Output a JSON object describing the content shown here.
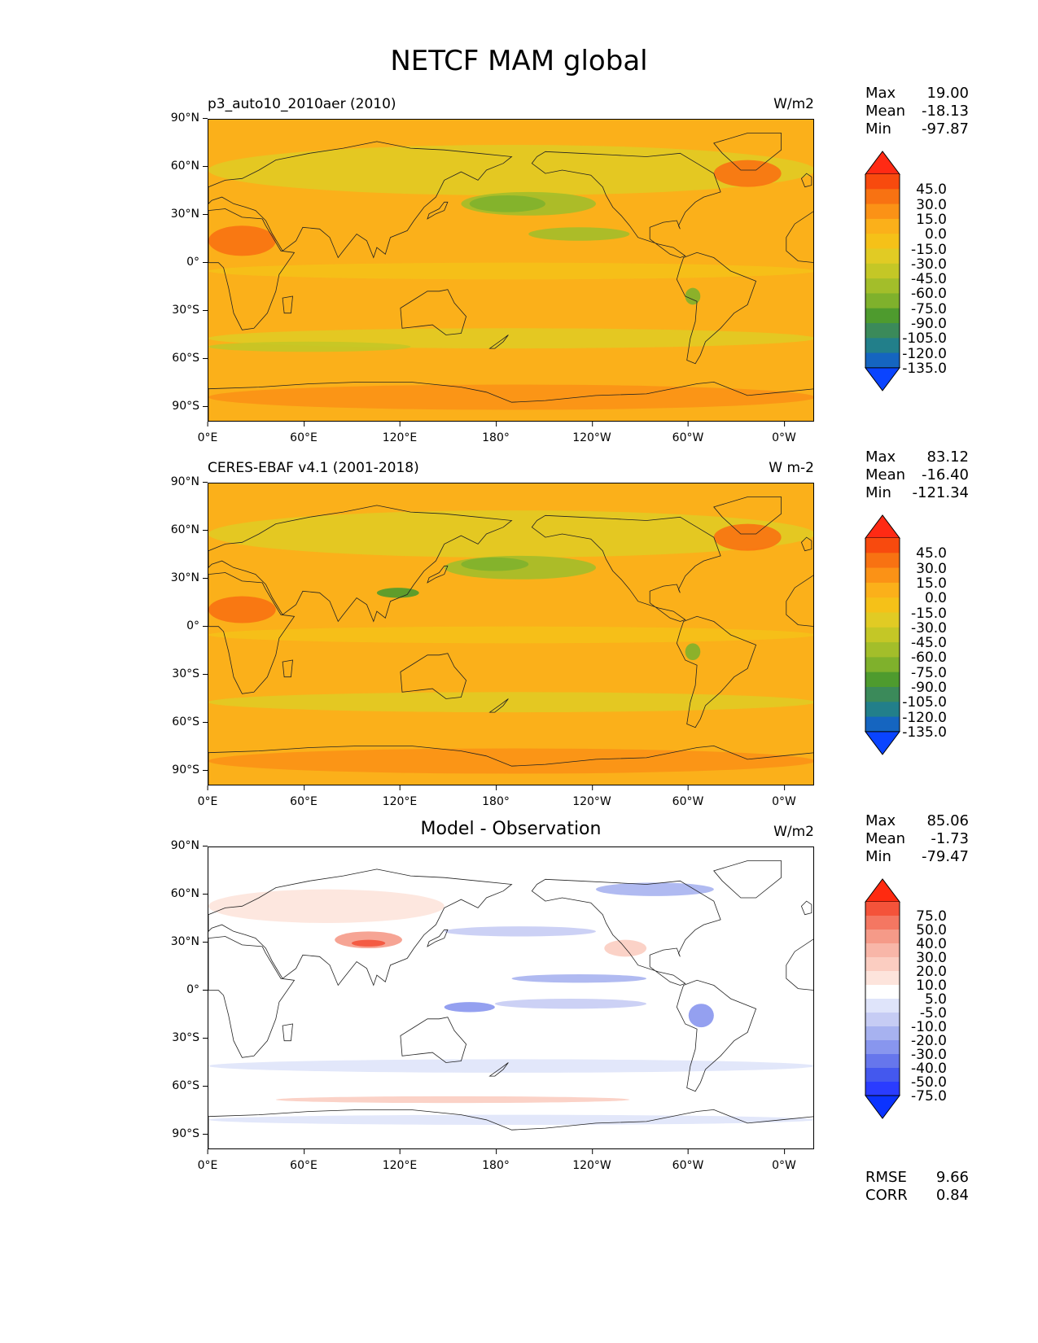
{
  "figure": {
    "title": "NETCF MAM global"
  },
  "axes": {
    "lat_ticks": [
      "90°N",
      "60°N",
      "30°N",
      "0°",
      "30°S",
      "60°S",
      "90°S"
    ],
    "lon_ticks": [
      "0°E",
      "60°E",
      "120°E",
      "180°",
      "120°W",
      "60°W",
      "0°W"
    ]
  },
  "panels": [
    {
      "title_left": "p3_auto10_2010aer (2010)",
      "title_center": "",
      "units": "W/m2",
      "stats": {
        "max_label": "Max",
        "max": "19.00",
        "mean_label": "Mean",
        "mean": "-18.13",
        "min_label": "Min",
        "min": "-97.87"
      },
      "colorbar": {
        "labels": [
          "45.0",
          "30.0",
          "15.0",
          "0.0",
          "-15.0",
          "-30.0",
          "-45.0",
          "-60.0",
          "-75.0",
          "-90.0",
          "-105.0",
          "-120.0",
          "-135.0"
        ],
        "colors": [
          "#ff2a14",
          "#f84a0e",
          "#f87212",
          "#fb9216",
          "#fbb01a",
          "#f5c118",
          "#e1cb24",
          "#c4c726",
          "#a3be2a",
          "#7fb12c",
          "#4e9b2e",
          "#3b8a5a",
          "#227f8a",
          "#1565c0",
          "#0a44ff"
        ]
      }
    },
    {
      "title_left": "CERES-EBAF v4.1 (2001-2018)",
      "title_center": "",
      "units": "W m-2",
      "stats": {
        "max_label": "Max",
        "max": "83.12",
        "mean_label": "Mean",
        "mean": "-16.40",
        "min_label": "Min",
        "min": "-121.34"
      },
      "colorbar": {
        "labels": [
          "45.0",
          "30.0",
          "15.0",
          "0.0",
          "-15.0",
          "-30.0",
          "-45.0",
          "-60.0",
          "-75.0",
          "-90.0",
          "-105.0",
          "-120.0",
          "-135.0"
        ],
        "colors": [
          "#ff2a14",
          "#f84a0e",
          "#f87212",
          "#fb9216",
          "#fbb01a",
          "#f5c118",
          "#e1cb24",
          "#c4c726",
          "#a3be2a",
          "#7fb12c",
          "#4e9b2e",
          "#3b8a5a",
          "#227f8a",
          "#1565c0",
          "#0a44ff"
        ]
      }
    },
    {
      "title_left": "",
      "title_center": "Model - Observation",
      "units": "W/m2",
      "stats": {
        "max_label": "Max",
        "max": "85.06",
        "mean_label": "Mean",
        "mean": "-1.73",
        "min_label": "Min",
        "min": "-79.47"
      },
      "colorbar": {
        "labels": [
          "75.0",
          "50.0",
          "40.0",
          "30.0",
          "20.0",
          "10.0",
          "5.0",
          "-5.0",
          "-10.0",
          "-20.0",
          "-30.0",
          "-40.0",
          "-50.0",
          "-75.0"
        ],
        "colors": [
          "#ff2a10",
          "#f4533a",
          "#f47762",
          "#f59a88",
          "#f8b6a8",
          "#fbcdc1",
          "#fde4dc",
          "#ffffff",
          "#dfe4fa",
          "#c6ccf4",
          "#a7b2f0",
          "#8896ee",
          "#6676ec",
          "#4458ee",
          "#2a3cff",
          "#0b33ff"
        ]
      },
      "footer": {
        "rmse_label": "RMSE",
        "rmse": "9.66",
        "corr_label": "CORR",
        "corr": "0.84"
      }
    }
  ]
}
